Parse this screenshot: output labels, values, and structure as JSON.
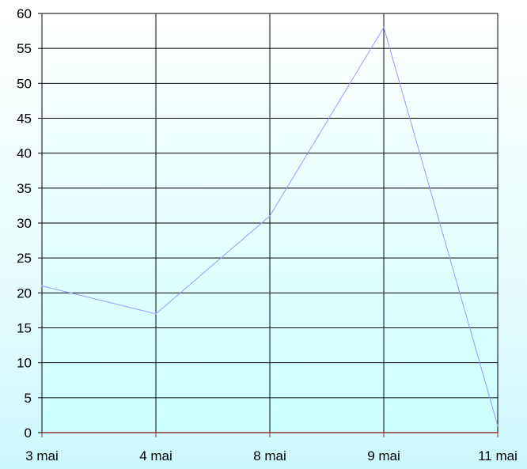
{
  "chart_data": {
    "type": "line",
    "title": "",
    "xlabel": "",
    "ylabel": "",
    "categories": [
      "3 mai",
      "4 mai",
      "8 mai",
      "9 mai",
      "11 mai"
    ],
    "series": [
      {
        "values": [
          21,
          17,
          31,
          58,
          1
        ],
        "color": "#9999ff"
      }
    ],
    "ylim": [
      0,
      60
    ],
    "yticks": [
      0,
      5,
      10,
      15,
      20,
      25,
      30,
      35,
      40,
      45,
      50,
      55,
      60
    ],
    "grid": true,
    "colors": {
      "grid": "#000000",
      "x_axis": "#993333",
      "line": "#9999ff",
      "plot_top": "#ffffff",
      "plot_bottom": "#ccffff"
    }
  }
}
